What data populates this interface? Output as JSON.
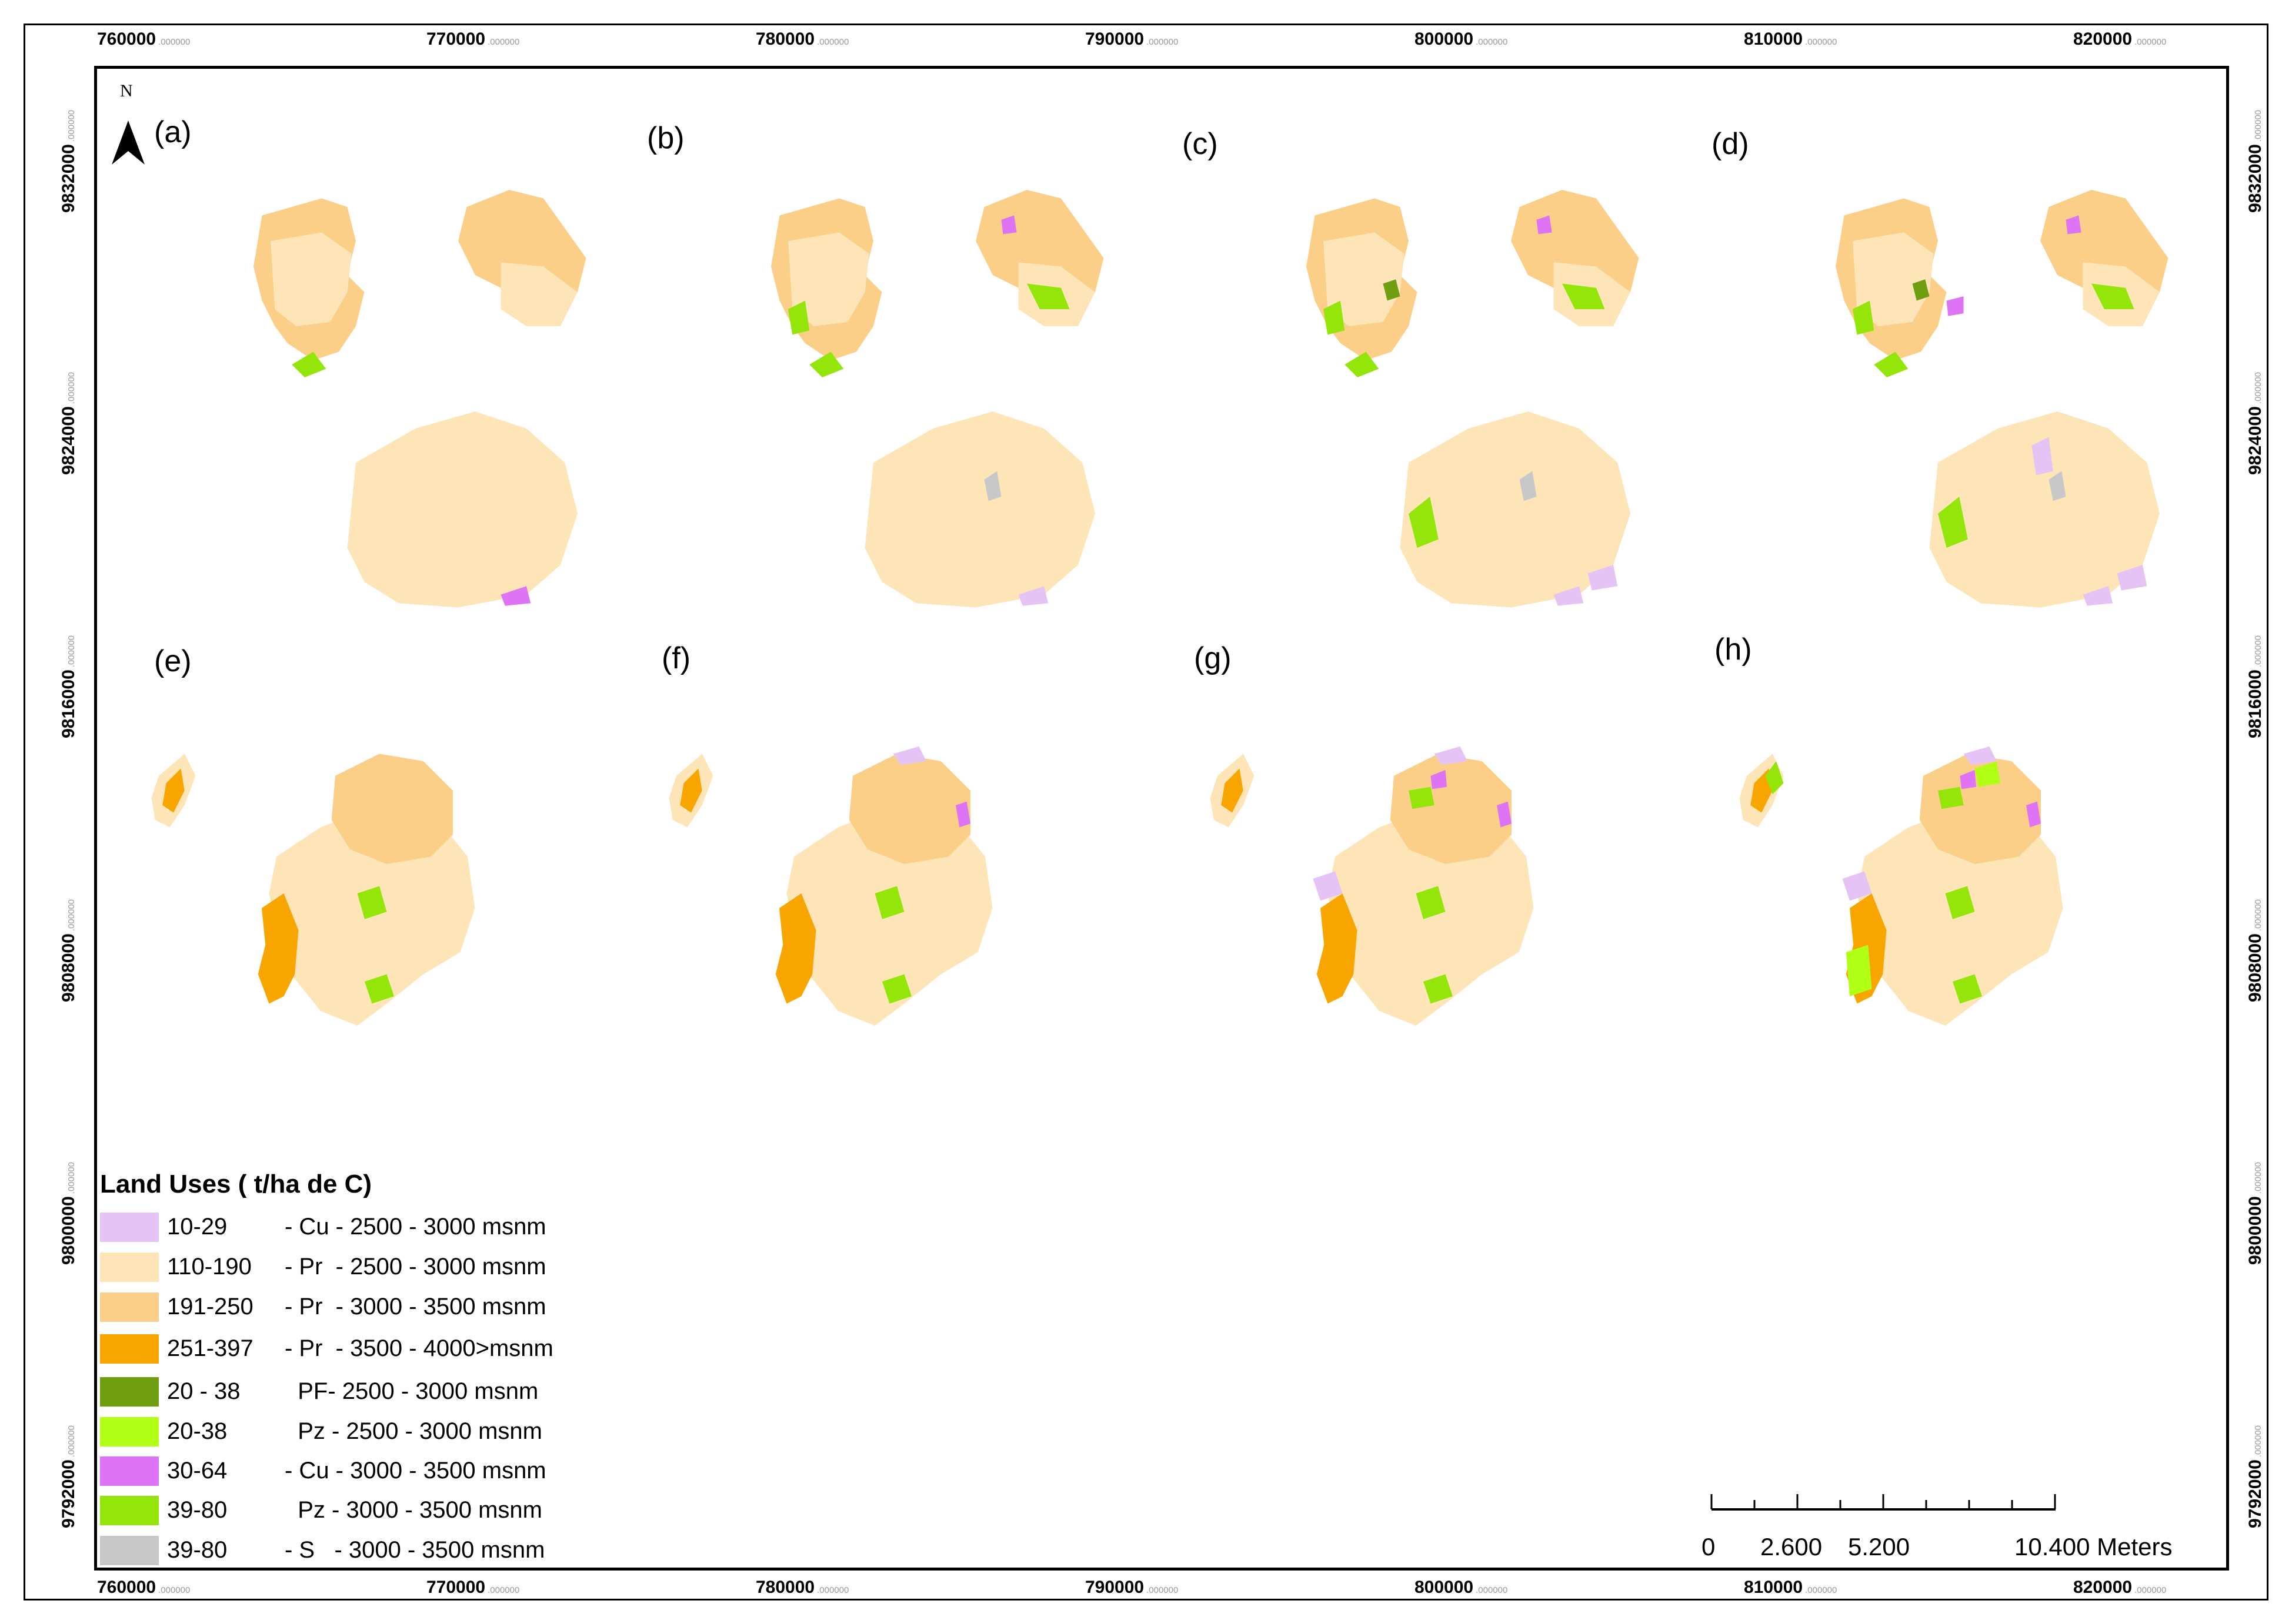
{
  "grid": {
    "x_labels": [
      "760000",
      "770000",
      "780000",
      "790000",
      "800000",
      "810000",
      "820000"
    ],
    "x_suffix": ".000000",
    "y_labels": [
      "9832000",
      "9824000",
      "9816000",
      "9808000",
      "9800000",
      "9792000"
    ],
    "y_suffix": ".000000"
  },
  "panels": [
    {
      "id": "a",
      "label": "(a)"
    },
    {
      "id": "b",
      "label": "(b)"
    },
    {
      "id": "c",
      "label": "(c)"
    },
    {
      "id": "d",
      "label": "(d)"
    },
    {
      "id": "e",
      "label": "(e)"
    },
    {
      "id": "f",
      "label": "(f)"
    },
    {
      "id": "g",
      "label": "(g)"
    },
    {
      "id": "h",
      "label": "(h)"
    }
  ],
  "north_arrow": {
    "label": "N"
  },
  "legend": {
    "title": "Land Uses ( t/ha de C)",
    "items": [
      {
        "range": "10-29",
        "desc": "- Cu - 2500 - 3000 msnm",
        "color": "#e6c3f5"
      },
      {
        "range": "110-190",
        "desc": "- Pr  - 2500 - 3000 msnm",
        "color": "#fde5b8"
      },
      {
        "range": "191-250",
        "desc": "- Pr  - 3000 - 3500 msnm",
        "color": "#fbcf88"
      },
      {
        "range": "251-397",
        "desc": "- Pr  - 3500 - 4000>msnm",
        "color": "#f9a500"
      },
      {
        "range": "20 - 38",
        "desc": "  PF- 2500 - 3000 msnm",
        "color": "#6f9e10"
      },
      {
        "range": "20-38",
        "desc": "  Pz - 2500 - 3000 msnm",
        "color": "#b0ff14"
      },
      {
        "range": "30-64",
        "desc": "- Cu - 3000 - 3500 msnm",
        "color": "#de73f5"
      },
      {
        "range": "39-80",
        "desc": "  Pz - 3000 - 3500 msnm",
        "color": "#93e50a"
      },
      {
        "range": "39-80",
        "desc": "- S   - 3000 - 3500 msnm",
        "color": "#c8c8c8"
      }
    ]
  },
  "scale_bar": {
    "labels": [
      "0",
      "2.600",
      "5.200",
      "10.400 Meters"
    ]
  }
}
